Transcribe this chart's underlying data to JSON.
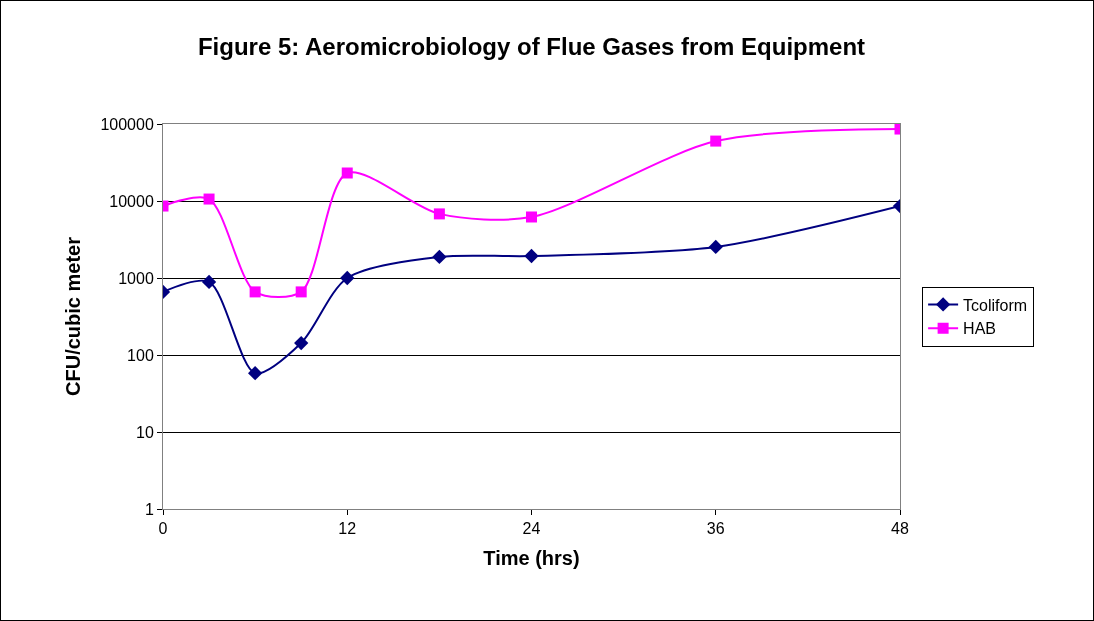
{
  "chart_data": {
    "type": "line",
    "title": "Figure 5: Aeromicrobiology of Flue Gases from Equipment",
    "xlabel": "Time (hrs)",
    "ylabel": "CFU/cubic meter",
    "x": [
      0,
      3,
      6,
      9,
      12,
      18,
      24,
      36,
      48
    ],
    "series": [
      {
        "name": "Tcoliform",
        "color": "#000080",
        "marker": "diamond",
        "values": [
          660,
          890,
          58,
          143,
          1000,
          1880,
          1930,
          2530,
          8600
        ]
      },
      {
        "name": "HAB",
        "color": "#ff00ff",
        "marker": "square",
        "values": [
          8600,
          10600,
          660,
          660,
          23100,
          6800,
          6200,
          60000,
          86000
        ]
      }
    ],
    "log": "y",
    "xlim": [
      0,
      48
    ],
    "xticks": [
      0,
      12,
      24,
      36,
      48
    ],
    "ylim": [
      1,
      100000
    ],
    "yticks": [
      1,
      10,
      100,
      1000,
      10000,
      100000
    ],
    "grid": "y",
    "legend": "right"
  }
}
